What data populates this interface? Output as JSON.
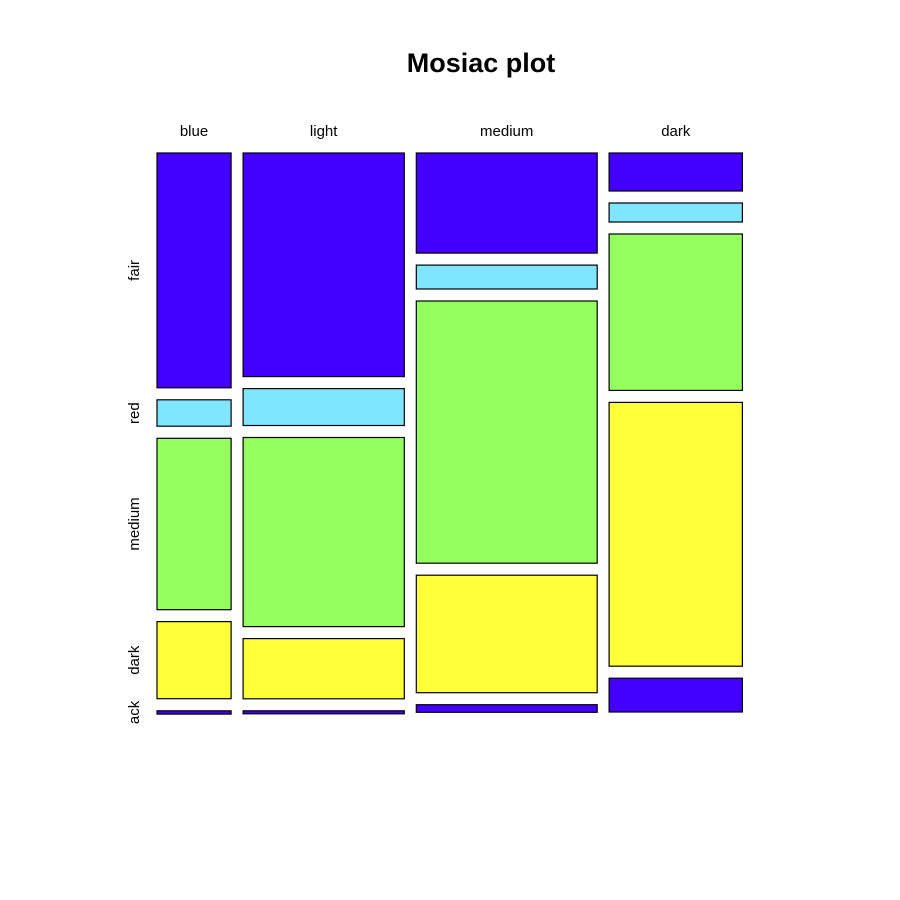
{
  "chart_data": {
    "type": "mosaic",
    "title": "Mosiac plot",
    "columns": [
      "blue",
      "light",
      "medium",
      "dark"
    ],
    "column_proportions": [
      0.1216,
      0.2647,
      0.297,
      0.2189
    ],
    "rows": [
      "fair",
      "red",
      "medium",
      "dark",
      "black"
    ],
    "row_label_display": [
      "fair",
      "red",
      "medium",
      "dark",
      "ack"
    ],
    "colors": [
      "#4400FF",
      "#80E5FF",
      "#95FF5F",
      "#FFFF3A",
      "#4400FF"
    ],
    "conditional_proportions": {
      "blue": [
        0.4317,
        0.0486,
        0.315,
        0.1418,
        0.006
      ],
      "light": [
        0.411,
        0.0678,
        0.3477,
        0.1107,
        0.0056
      ],
      "medium": [
        0.184,
        0.044,
        0.482,
        0.216,
        0.014
      ],
      "dark": [
        0.0699,
        0.0349,
        0.2875,
        0.4849,
        0.0621
      ]
    }
  }
}
